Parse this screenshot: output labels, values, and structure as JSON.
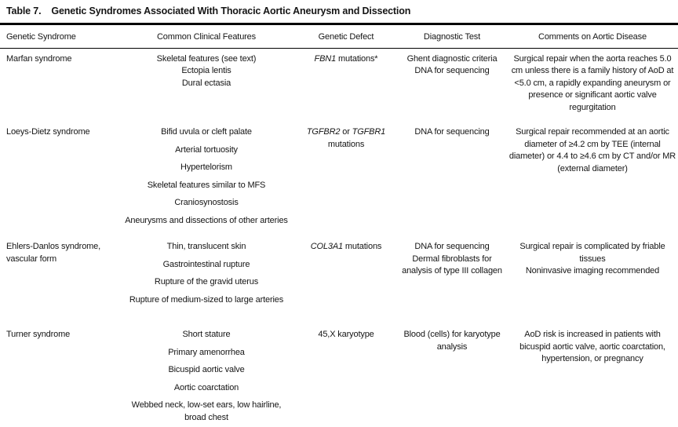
{
  "title": {
    "label": "Table 7.",
    "text": "Genetic Syndromes Associated With Thoracic Aortic Aneurysm and Dissection"
  },
  "table": {
    "columns": [
      "Genetic Syndrome",
      "Common Clinical Features",
      "Genetic Defect",
      "Diagnostic Test",
      "Comments on Aortic Disease"
    ],
    "rows": [
      {
        "syndrome": "Marfan syndrome",
        "features": [
          "Skeletal features (see text)",
          "Ectopia lentis",
          "Dural ectasia"
        ],
        "defect": [
          {
            "text": "FBN1",
            "italic": true
          },
          {
            "text": " mutations*",
            "italic": false
          }
        ],
        "tests": [
          "Ghent diagnostic criteria",
          "DNA for sequencing"
        ],
        "comments": [
          "Surgical repair when the aorta reaches 5.0 cm unless there is a family history of AoD at <5.0 cm, a rapidly expanding aneurysm or presence or significant aortic valve regurgitation"
        ]
      },
      {
        "syndrome": "Loeys-Dietz syndrome",
        "features": [
          "Bifid uvula or cleft palate",
          "Arterial tortuosity",
          "Hypertelorism",
          "Skeletal features similar to MFS",
          "Craniosynostosis",
          "Aneurysms and dissections of other arteries"
        ],
        "defect": [
          {
            "text": "TGFBR2",
            "italic": true
          },
          {
            "text": " or ",
            "italic": false
          },
          {
            "text": "TGFBR1",
            "italic": true
          },
          {
            "text": " mutations",
            "italic": false
          }
        ],
        "tests": [
          "DNA for sequencing"
        ],
        "comments": [
          "Surgical repair recommended at an aortic diameter of ≥4.2 cm by TEE (internal diameter) or 4.4 to ≥4.6 cm by CT and/or MR (external diameter)"
        ]
      },
      {
        "syndrome": "Ehlers-Danlos syndrome, vascular form",
        "features": [
          "Thin, translucent skin",
          "Gastrointestinal rupture",
          "Rupture of the gravid uterus",
          "Rupture of medium-sized to large arteries"
        ],
        "defect": [
          {
            "text": "COL3A1",
            "italic": true
          },
          {
            "text": " mutations",
            "italic": false
          }
        ],
        "tests": [
          "DNA for sequencing",
          "Dermal fibroblasts for analysis of type III collagen"
        ],
        "comments": [
          "Surgical repair is complicated by friable tissues",
          "Noninvasive imaging recommended"
        ]
      },
      {
        "syndrome": "Turner syndrome",
        "features": [
          "Short stature",
          "Primary amenorrhea",
          "Bicuspid aortic valve",
          "Aortic coarctation",
          "Webbed neck, low-set ears, low hairline, broad chest"
        ],
        "defect": [
          {
            "text": "45,X karyotype",
            "italic": false
          }
        ],
        "tests": [
          "Blood (cells) for karyotype analysis"
        ],
        "comments": [
          "AoD risk is increased in patients with bicuspid aortic valve, aortic coarctation, hypertension, or pregnancy"
        ]
      }
    ]
  }
}
